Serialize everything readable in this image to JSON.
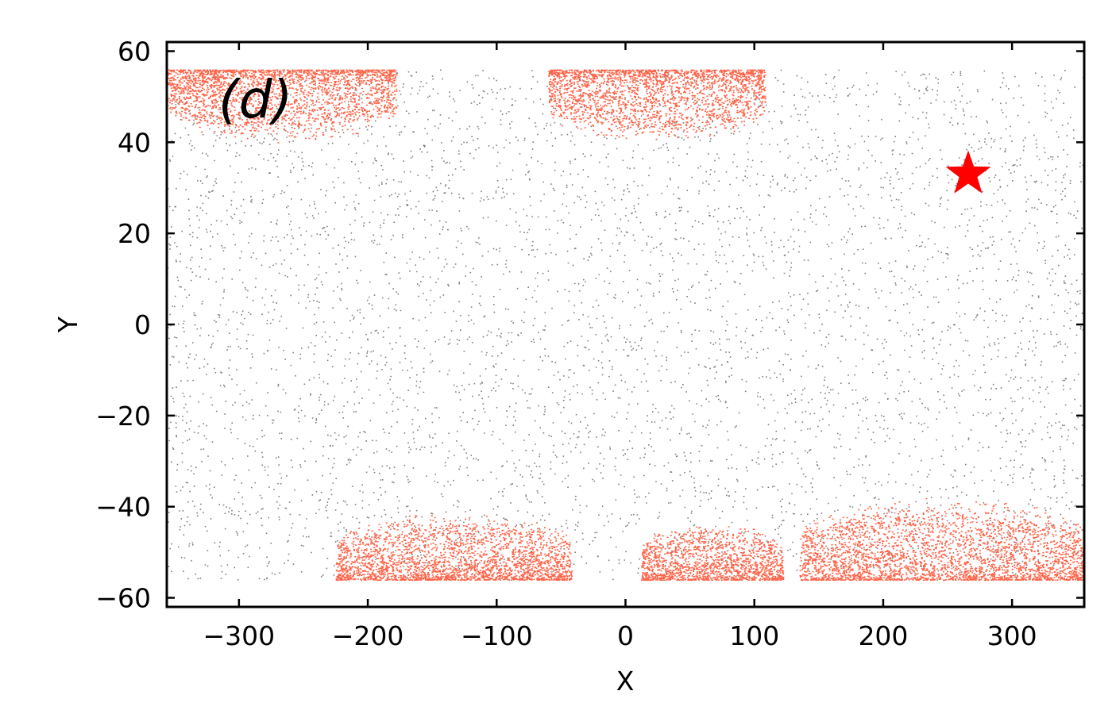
{
  "chart_data": {
    "type": "scatter",
    "title": "",
    "panel_label": "(d)",
    "xlabel": "X",
    "ylabel": "Y",
    "xlim": [
      -356,
      356
    ],
    "ylim": [
      -62,
      62
    ],
    "xticks": [
      -300,
      -200,
      -100,
      0,
      100,
      200,
      300
    ],
    "yticks": [
      -60,
      -40,
      -20,
      0,
      20,
      40,
      60
    ],
    "grid": false,
    "legend": "none",
    "colors": {
      "background_points": "#7f7f7f",
      "cluster_points": "#ff6347",
      "marker": "#ff0000"
    },
    "background_scatter": {
      "description_free_count": 5200,
      "x_range": [
        -356,
        356
      ],
      "y_range": [
        -56,
        56
      ]
    },
    "clusters": [
      {
        "edge": "top",
        "x": [
          -356,
          -178
        ],
        "depth_to": 42
      },
      {
        "edge": "top",
        "x": [
          -60,
          108
        ],
        "depth_to": 42
      },
      {
        "edge": "bottom",
        "x": [
          -225,
          -42
        ],
        "depth_to": -43
      },
      {
        "edge": "bottom",
        "x": [
          12,
          122
        ],
        "depth_to": -45
      },
      {
        "edge": "bottom",
        "x": [
          135,
          356
        ],
        "depth_to": -40
      }
    ],
    "star_marker": {
      "x": 266,
      "y": 33
    }
  }
}
